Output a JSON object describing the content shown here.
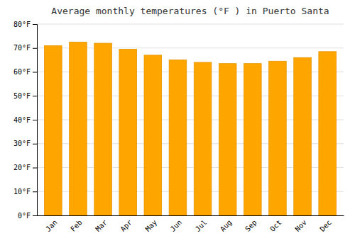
{
  "chart_data": {
    "type": "bar",
    "title": "Average monthly temperatures (°F ) in Puerto Santa",
    "categories": [
      "Jan",
      "Feb",
      "Mar",
      "Apr",
      "May",
      "Jun",
      "Jul",
      "Aug",
      "Sep",
      "Oct",
      "Nov",
      "Dec"
    ],
    "values": [
      71,
      72.5,
      72,
      69.5,
      67,
      65,
      64,
      63.5,
      63.5,
      64.5,
      66,
      68.5
    ],
    "color": "#FFA500",
    "ylim": [
      0,
      80
    ],
    "yticks": [
      {
        "value": 0,
        "label": "0°F"
      },
      {
        "value": 10,
        "label": "10°F"
      },
      {
        "value": 20,
        "label": "20°F"
      },
      {
        "value": 30,
        "label": "30°F"
      },
      {
        "value": 40,
        "label": "40°F"
      },
      {
        "value": 50,
        "label": "50°F"
      },
      {
        "value": 60,
        "label": "60°F"
      },
      {
        "value": 70,
        "label": "70°F"
      },
      {
        "value": 80,
        "label": "80°F"
      }
    ],
    "grid": true
  }
}
